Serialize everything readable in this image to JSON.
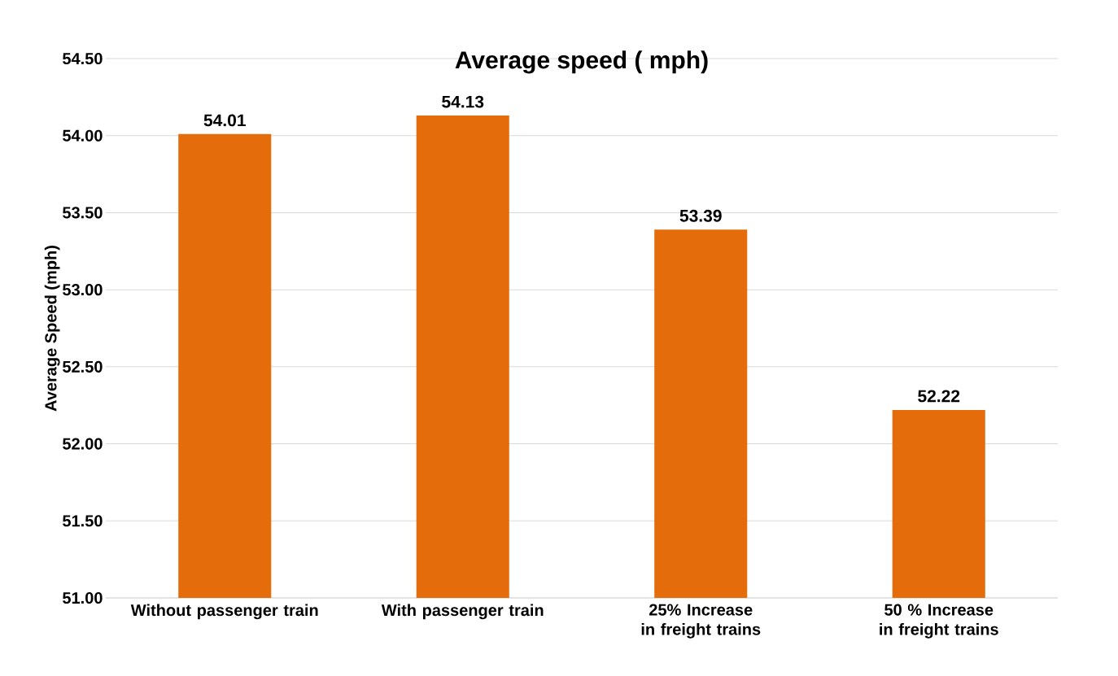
{
  "chart_data": {
    "type": "bar",
    "title": "Average speed ( mph)",
    "ylabel": "Average Speed (mph)",
    "categories": [
      "Without passenger train",
      "With passenger train",
      "25% Increase in freight trains",
      "50 % Increase in freight trains"
    ],
    "values": [
      54.01,
      54.13,
      53.39,
      52.22
    ],
    "color": "#e46c0a",
    "data_labels": true,
    "grid": "y",
    "ylim": [
      51,
      54.5
    ],
    "yticks": [
      {
        "value": 51,
        "label": "51.00"
      },
      {
        "value": 51.5,
        "label": "51.50"
      },
      {
        "value": 52,
        "label": "52.00"
      },
      {
        "value": 52.5,
        "label": "52.50"
      },
      {
        "value": 53,
        "label": "53.00"
      },
      {
        "value": 53.5,
        "label": "53.50"
      },
      {
        "value": 54,
        "label": "54.00"
      },
      {
        "value": 54.5,
        "label": "54.50"
      }
    ]
  }
}
